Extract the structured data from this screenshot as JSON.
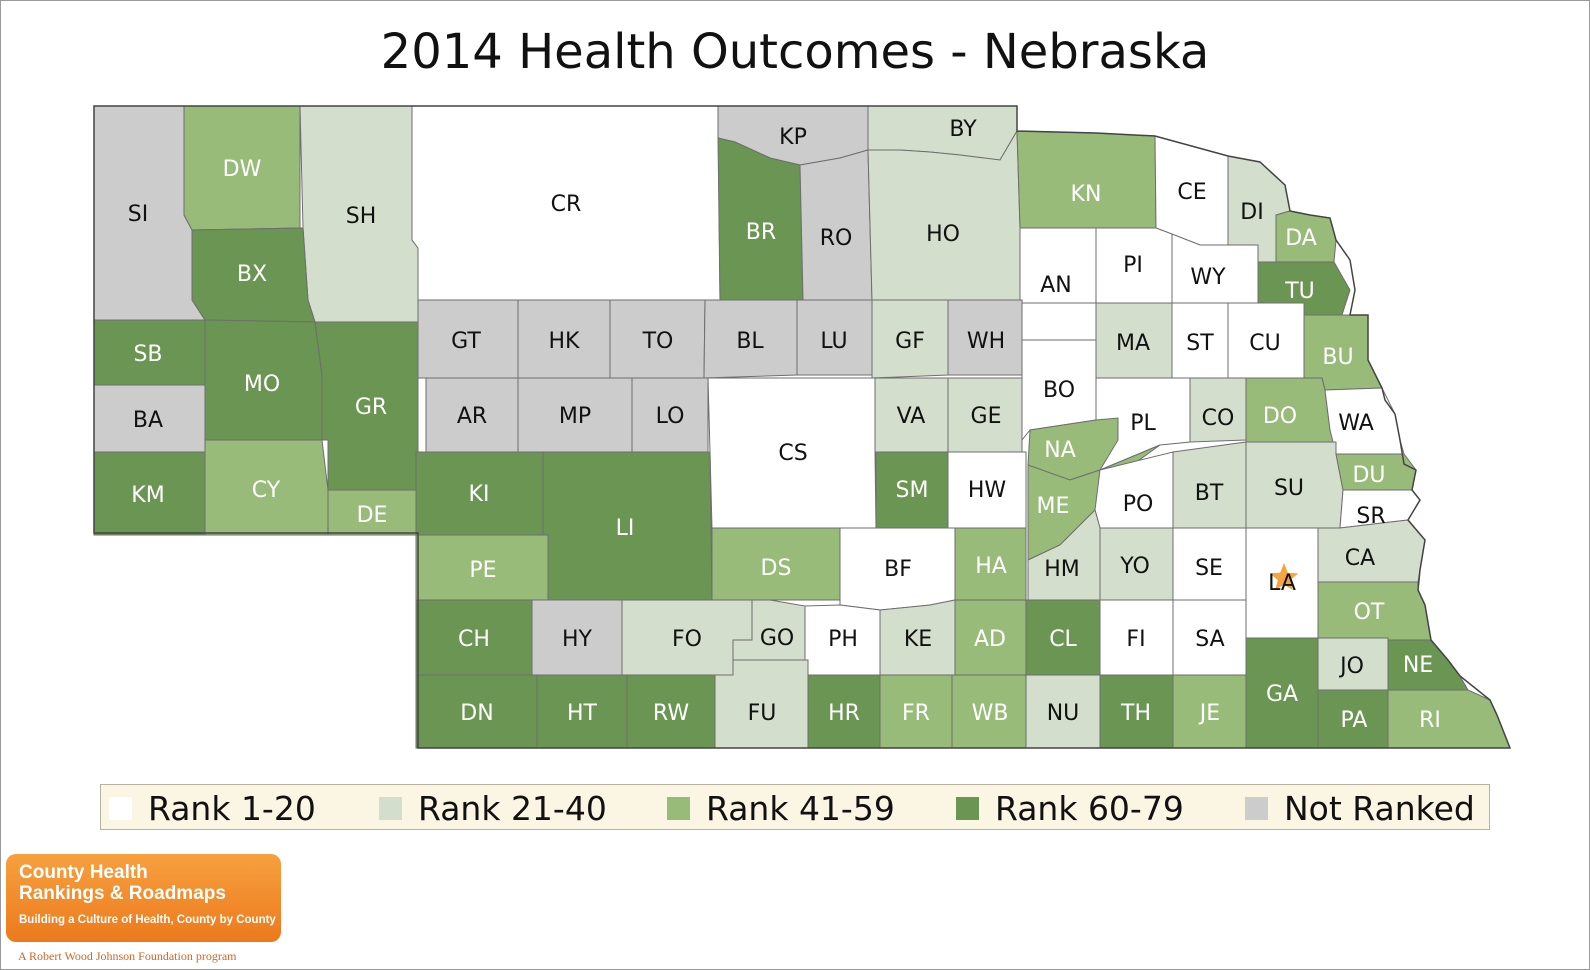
{
  "title": "2014 Health Outcomes - Nebraska",
  "legend": [
    {
      "label": "Rank 1-20",
      "color": "#ffffff"
    },
    {
      "label": "Rank 21-40",
      "color": "#d3dfcc"
    },
    {
      "label": "Rank 41-59",
      "color": "#98bb79"
    },
    {
      "label": "Rank 60-79",
      "color": "#6b9553"
    },
    {
      "label": "Not Ranked",
      "color": "#cccccd"
    }
  ],
  "highlight_marker": {
    "county": "LA",
    "icon": "star-icon",
    "color": "#f5a540"
  },
  "counties": [
    {
      "abbr": "SI",
      "rank_group": "Not Ranked"
    },
    {
      "abbr": "DW",
      "rank_group": "Rank 41-59"
    },
    {
      "abbr": "SH",
      "rank_group": "Rank 21-40"
    },
    {
      "abbr": "CR",
      "rank_group": "Rank 1-20"
    },
    {
      "abbr": "KP",
      "rank_group": "Not Ranked"
    },
    {
      "abbr": "BY",
      "rank_group": "Rank 21-40"
    },
    {
      "abbr": "BR",
      "rank_group": "Rank 60-79"
    },
    {
      "abbr": "RO",
      "rank_group": "Not Ranked"
    },
    {
      "abbr": "HO",
      "rank_group": "Rank 21-40"
    },
    {
      "abbr": "KN",
      "rank_group": "Rank 41-59"
    },
    {
      "abbr": "CE",
      "rank_group": "Rank 1-20"
    },
    {
      "abbr": "DI",
      "rank_group": "Rank 21-40"
    },
    {
      "abbr": "DA",
      "rank_group": "Rank 41-59"
    },
    {
      "abbr": "BX",
      "rank_group": "Rank 60-79"
    },
    {
      "abbr": "AN",
      "rank_group": "Rank 1-20"
    },
    {
      "abbr": "PI",
      "rank_group": "Rank 1-20"
    },
    {
      "abbr": "WY",
      "rank_group": "Rank 1-20"
    },
    {
      "abbr": "TU",
      "rank_group": "Rank 60-79"
    },
    {
      "abbr": "SB",
      "rank_group": "Rank 60-79"
    },
    {
      "abbr": "MO",
      "rank_group": "Rank 60-79"
    },
    {
      "abbr": "GR",
      "rank_group": "Rank 60-79"
    },
    {
      "abbr": "GT",
      "rank_group": "Not Ranked"
    },
    {
      "abbr": "HK",
      "rank_group": "Not Ranked"
    },
    {
      "abbr": "TO",
      "rank_group": "Not Ranked"
    },
    {
      "abbr": "BL",
      "rank_group": "Not Ranked"
    },
    {
      "abbr": "LU",
      "rank_group": "Not Ranked"
    },
    {
      "abbr": "GF",
      "rank_group": "Rank 21-40"
    },
    {
      "abbr": "WH",
      "rank_group": "Not Ranked"
    },
    {
      "abbr": "MA",
      "rank_group": "Rank 21-40"
    },
    {
      "abbr": "ST",
      "rank_group": "Rank 1-20"
    },
    {
      "abbr": "CU",
      "rank_group": "Rank 1-20"
    },
    {
      "abbr": "BU",
      "rank_group": "Rank 41-59"
    },
    {
      "abbr": "BA",
      "rank_group": "Not Ranked"
    },
    {
      "abbr": "AR",
      "rank_group": "Not Ranked"
    },
    {
      "abbr": "MP",
      "rank_group": "Not Ranked"
    },
    {
      "abbr": "LO",
      "rank_group": "Not Ranked"
    },
    {
      "abbr": "BO",
      "rank_group": "Rank 1-20"
    },
    {
      "abbr": "VA",
      "rank_group": "Rank 21-40"
    },
    {
      "abbr": "GE",
      "rank_group": "Rank 21-40"
    },
    {
      "abbr": "CO",
      "rank_group": "Rank 21-40"
    },
    {
      "abbr": "DO",
      "rank_group": "Rank 41-59"
    },
    {
      "abbr": "PL",
      "rank_group": "Rank 1-20"
    },
    {
      "abbr": "WA",
      "rank_group": "Rank 1-20"
    },
    {
      "abbr": "CS",
      "rank_group": "Rank 1-20"
    },
    {
      "abbr": "NA",
      "rank_group": "Rank 41-59"
    },
    {
      "abbr": "KM",
      "rank_group": "Rank 60-79"
    },
    {
      "abbr": "CY",
      "rank_group": "Rank 41-59"
    },
    {
      "abbr": "KI",
      "rank_group": "Rank 60-79"
    },
    {
      "abbr": "LI",
      "rank_group": "Rank 60-79"
    },
    {
      "abbr": "SM",
      "rank_group": "Rank 60-79"
    },
    {
      "abbr": "HW",
      "rank_group": "Rank 1-20"
    },
    {
      "abbr": "BT",
      "rank_group": "Rank 21-40"
    },
    {
      "abbr": "SU",
      "rank_group": "Rank 21-40"
    },
    {
      "abbr": "DU",
      "rank_group": "Rank 41-59"
    },
    {
      "abbr": "ME",
      "rank_group": "Rank 41-59"
    },
    {
      "abbr": "PO",
      "rank_group": "Rank 1-20"
    },
    {
      "abbr": "DE",
      "rank_group": "Rank 41-59"
    },
    {
      "abbr": "SR",
      "rank_group": "Rank 1-20"
    },
    {
      "abbr": "PE",
      "rank_group": "Rank 41-59"
    },
    {
      "abbr": "DS",
      "rank_group": "Rank 41-59"
    },
    {
      "abbr": "BF",
      "rank_group": "Rank 1-20"
    },
    {
      "abbr": "HA",
      "rank_group": "Rank 41-59"
    },
    {
      "abbr": "HM",
      "rank_group": "Rank 21-40"
    },
    {
      "abbr": "YO",
      "rank_group": "Rank 21-40"
    },
    {
      "abbr": "SE",
      "rank_group": "Rank 1-20"
    },
    {
      "abbr": "LA",
      "rank_group": "Rank 1-20"
    },
    {
      "abbr": "CA",
      "rank_group": "Rank 21-40"
    },
    {
      "abbr": "OT",
      "rank_group": "Rank 41-59"
    },
    {
      "abbr": "CH",
      "rank_group": "Rank 60-79"
    },
    {
      "abbr": "HY",
      "rank_group": "Not Ranked"
    },
    {
      "abbr": "FO",
      "rank_group": "Rank 21-40"
    },
    {
      "abbr": "GO",
      "rank_group": "Rank 21-40"
    },
    {
      "abbr": "PH",
      "rank_group": "Rank 1-20"
    },
    {
      "abbr": "KE",
      "rank_group": "Rank 21-40"
    },
    {
      "abbr": "AD",
      "rank_group": "Rank 41-59"
    },
    {
      "abbr": "CL",
      "rank_group": "Rank 60-79"
    },
    {
      "abbr": "FI",
      "rank_group": "Rank 1-20"
    },
    {
      "abbr": "SA",
      "rank_group": "Rank 1-20"
    },
    {
      "abbr": "GA",
      "rank_group": "Rank 60-79"
    },
    {
      "abbr": "JO",
      "rank_group": "Rank 21-40"
    },
    {
      "abbr": "NE",
      "rank_group": "Rank 60-79"
    },
    {
      "abbr": "DN",
      "rank_group": "Rank 60-79"
    },
    {
      "abbr": "HT",
      "rank_group": "Rank 60-79"
    },
    {
      "abbr": "RW",
      "rank_group": "Rank 60-79"
    },
    {
      "abbr": "FU",
      "rank_group": "Rank 21-40"
    },
    {
      "abbr": "HR",
      "rank_group": "Rank 60-79"
    },
    {
      "abbr": "FR",
      "rank_group": "Rank 41-59"
    },
    {
      "abbr": "WB",
      "rank_group": "Rank 41-59"
    },
    {
      "abbr": "NU",
      "rank_group": "Rank 21-40"
    },
    {
      "abbr": "TH",
      "rank_group": "Rank 60-79"
    },
    {
      "abbr": "JE",
      "rank_group": "Rank 41-59"
    },
    {
      "abbr": "PA",
      "rank_group": "Rank 60-79"
    },
    {
      "abbr": "RI",
      "rank_group": "Rank 41-59"
    }
  ],
  "logo": {
    "line1": "County Health",
    "line2": "Rankings & Roadmaps",
    "tagline": "Building a Culture of Health, County by County",
    "program": "A Robert Wood Johnson Foundation program"
  }
}
